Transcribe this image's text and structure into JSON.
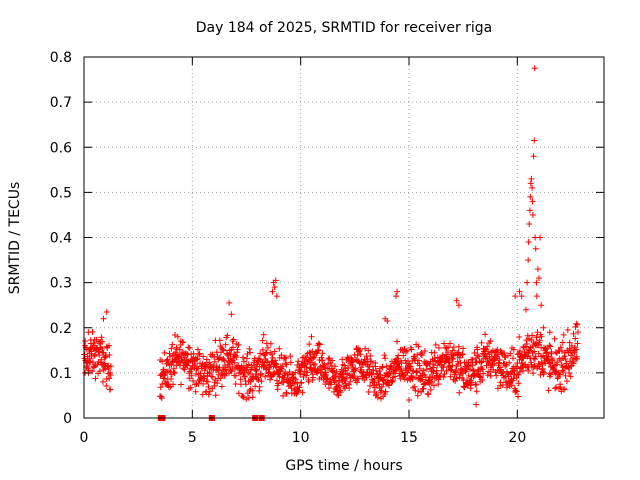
{
  "chart_data": {
    "type": "scatter",
    "title": "Day 184 of 2025, SRMTID for receiver riga",
    "xlabel": "GPS time / hours",
    "ylabel": "SRMTID / TECUs",
    "xlim": [
      0,
      24
    ],
    "ylim": [
      0,
      0.8
    ],
    "x_ticks": [
      0,
      5,
      10,
      15,
      20
    ],
    "y_ticks": [
      0,
      0.1,
      0.2,
      0.3,
      0.4,
      0.5,
      0.6,
      0.7,
      0.8
    ],
    "grid": true,
    "marker": "+",
    "color": "#ff0000",
    "series": [
      {
        "name": "SRMTID",
        "segments": [
          {
            "x0": 0.0,
            "x1": 1.25,
            "base": 0.12,
            "amp": 0.07
          },
          {
            "x0": 3.5,
            "x1": 8.3,
            "base": 0.115,
            "amp": 0.075
          },
          {
            "x0": 8.3,
            "x1": 15.0,
            "base": 0.1,
            "amp": 0.065
          },
          {
            "x0": 15.0,
            "x1": 20.0,
            "base": 0.115,
            "amp": 0.075
          },
          {
            "x0": 20.0,
            "x1": 22.8,
            "base": 0.13,
            "amp": 0.08
          }
        ],
        "points": [
          [
            0.05,
            0.16
          ],
          [
            0.2,
            0.19
          ],
          [
            0.9,
            0.22
          ],
          [
            1.05,
            0.235
          ],
          [
            6.7,
            0.255
          ],
          [
            6.8,
            0.23
          ],
          [
            8.7,
            0.28
          ],
          [
            8.75,
            0.3
          ],
          [
            8.8,
            0.29
          ],
          [
            8.85,
            0.305
          ],
          [
            8.9,
            0.27
          ],
          [
            10.5,
            0.18
          ],
          [
            13.9,
            0.22
          ],
          [
            14.0,
            0.215
          ],
          [
            14.4,
            0.27
          ],
          [
            14.45,
            0.28
          ],
          [
            15.0,
            0.04
          ],
          [
            17.2,
            0.26
          ],
          [
            17.3,
            0.25
          ],
          [
            18.1,
            0.03
          ],
          [
            19.9,
            0.27
          ],
          [
            20.1,
            0.28
          ],
          [
            20.2,
            0.27
          ],
          [
            20.4,
            0.24
          ],
          [
            20.45,
            0.3
          ],
          [
            20.5,
            0.35
          ],
          [
            20.52,
            0.39
          ],
          [
            20.55,
            0.43
          ],
          [
            20.58,
            0.46
          ],
          [
            20.6,
            0.49
          ],
          [
            20.62,
            0.52
          ],
          [
            20.65,
            0.53
          ],
          [
            20.68,
            0.51
          ],
          [
            20.7,
            0.48
          ],
          [
            20.72,
            0.45
          ],
          [
            20.75,
            0.58
          ],
          [
            20.78,
            0.615
          ],
          [
            20.8,
            0.775
          ],
          [
            20.82,
            0.4
          ],
          [
            20.85,
            0.375
          ],
          [
            20.88,
            0.3
          ],
          [
            20.9,
            0.27
          ],
          [
            20.95,
            0.33
          ],
          [
            21.0,
            0.31
          ],
          [
            21.05,
            0.4
          ],
          [
            21.1,
            0.25
          ],
          [
            21.2,
            0.2
          ],
          [
            21.5,
            0.19
          ]
        ]
      },
      {
        "name": "zero markers",
        "marker": "square",
        "points": [
          [
            3.55,
            0
          ],
          [
            3.62,
            0
          ],
          [
            5.9,
            0
          ],
          [
            7.9,
            0
          ],
          [
            8.2,
            0
          ]
        ]
      }
    ]
  }
}
